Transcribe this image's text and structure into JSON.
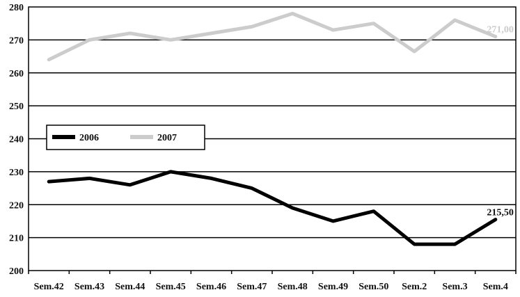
{
  "chart_data": {
    "type": "line",
    "title": "",
    "xlabel": "",
    "ylabel": "",
    "categories": [
      "Sem.42",
      "Sem.43",
      "Sem.44",
      "Sem.45",
      "Sem.46",
      "Sem.47",
      "Sem.48",
      "Sem.49",
      "Sem.50",
      "Sem.2",
      "Sem.3",
      "Sem.4"
    ],
    "y_ticks": [
      "200",
      "210",
      "220",
      "230",
      "240",
      "250",
      "260",
      "270",
      "280"
    ],
    "ylim": [
      200,
      280
    ],
    "grid": "horizontal",
    "legend_position": "left-middle",
    "series": [
      {
        "name": "2006",
        "color": "#000000",
        "values": [
          227,
          228,
          226,
          230,
          228,
          225,
          219,
          215,
          218,
          208,
          208,
          215.5
        ],
        "end_label": "215,50"
      },
      {
        "name": "2007",
        "color": "#cccccc",
        "values": [
          264,
          270,
          272,
          270,
          272,
          274,
          278,
          273,
          275,
          266.5,
          276,
          271
        ],
        "end_label": "271,00"
      }
    ]
  }
}
